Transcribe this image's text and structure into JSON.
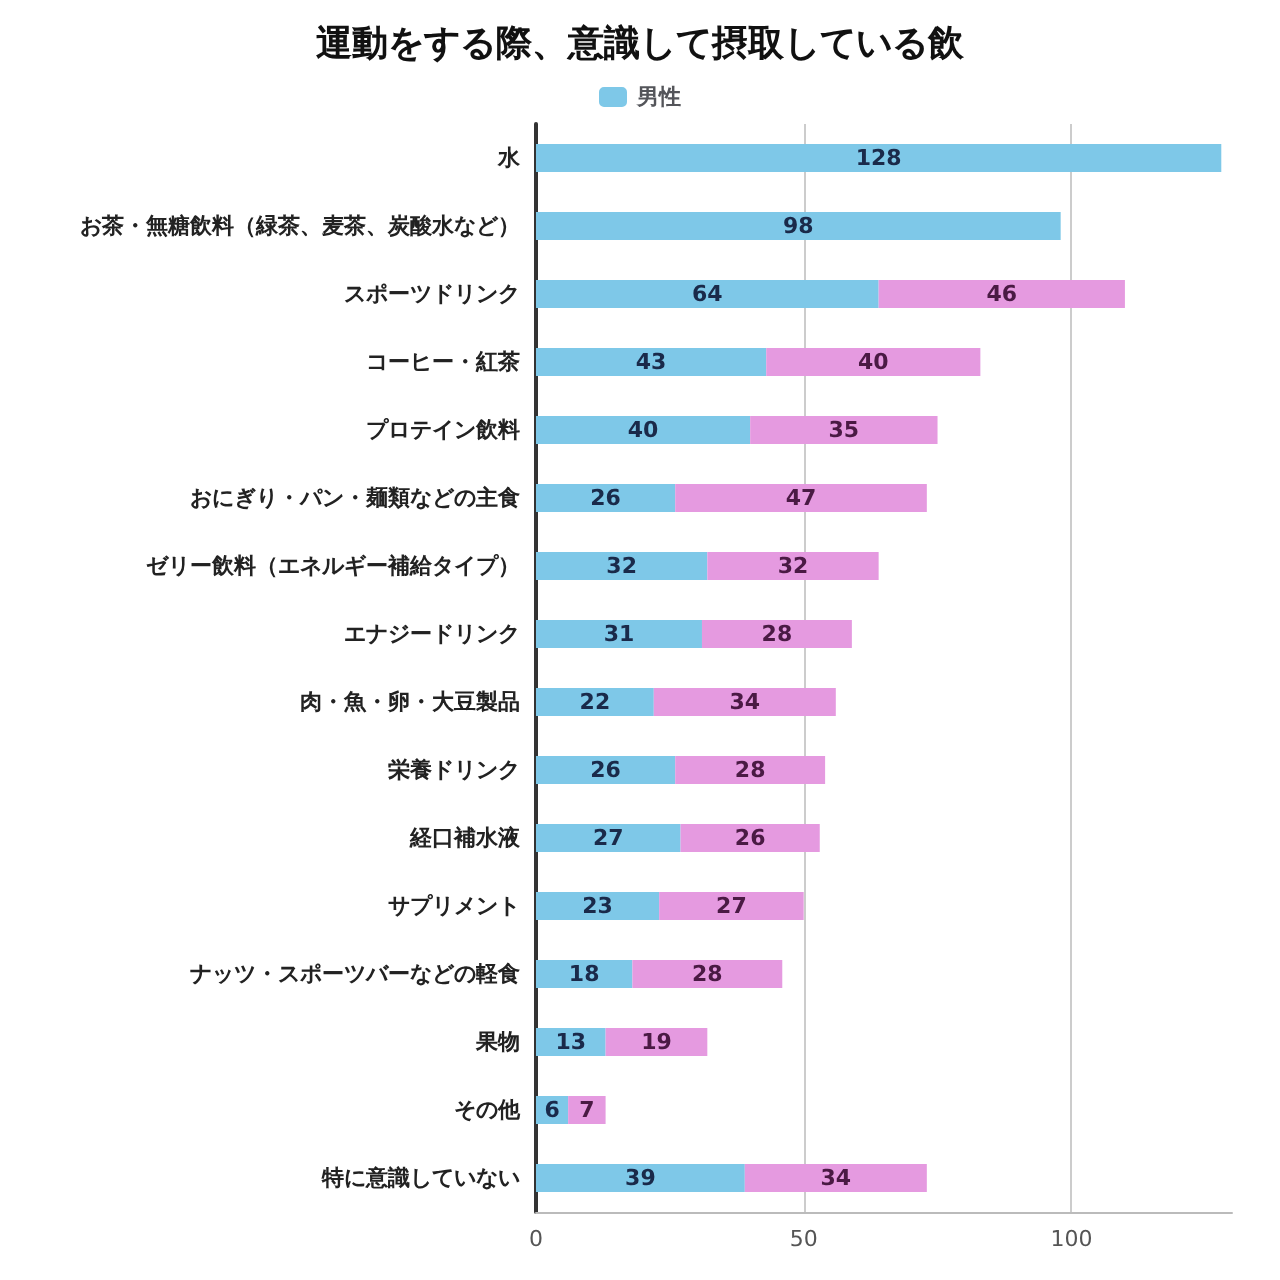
{
  "chart_data": {
    "type": "bar",
    "title": "運動をする際、意識して摂取している飲",
    "orientation": "horizontal",
    "stacked": true,
    "categories": [
      "水",
      "お茶・無糖飲料（緑茶、麦茶、炭酸水など）",
      "スポーツドリンク",
      "コーヒー・紅茶",
      "プロテイン飲料",
      "おにぎり・パン・麺類などの主食",
      "ゼリー飲料（エネルギー補給タイプ）",
      "エナジードリンク",
      "肉・魚・卵・大豆製品",
      "栄養ドリンク",
      "経口補水液",
      "サプリメント",
      "ナッツ・スポーツバーなどの軽食",
      "果物",
      "その他",
      "特に意識していない"
    ],
    "series": [
      {
        "name": "男性",
        "color": "#7ec8e8",
        "values": [
          128,
          98,
          64,
          43,
          40,
          26,
          32,
          31,
          22,
          26,
          27,
          23,
          18,
          13,
          6,
          39
        ]
      },
      {
        "color": "#e59ae0",
        "values": [
          null,
          null,
          46,
          40,
          35,
          47,
          32,
          28,
          34,
          28,
          26,
          27,
          28,
          19,
          7,
          34
        ]
      }
    ],
    "xlim": [
      0,
      130
    ],
    "xticks": [
      0,
      50,
      100
    ],
    "grid": "x",
    "legend": "top",
    "data_labels": true
  }
}
